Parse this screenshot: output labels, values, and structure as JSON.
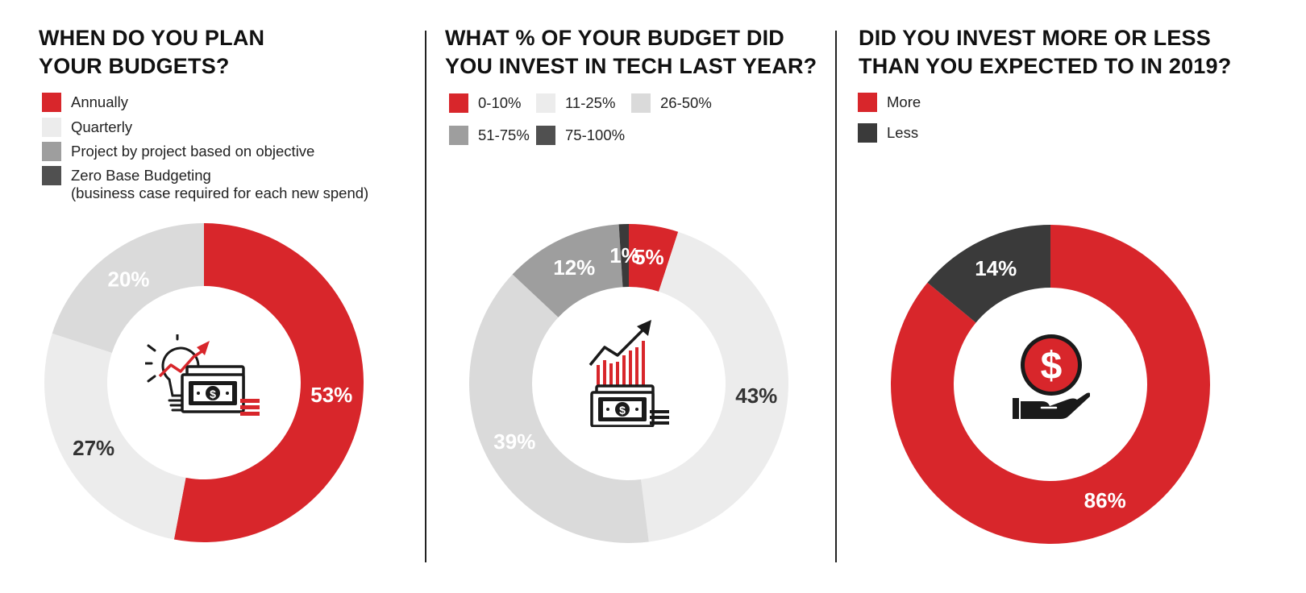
{
  "colors": {
    "red": "#d8262b",
    "light": "#ececec",
    "light2": "#dadada",
    "mid": "#9e9e9e",
    "dark": "#505050",
    "darker": "#3a3a3a"
  },
  "chart_data": [
    {
      "type": "pie",
      "title_lines": [
        "WHEN DO YOU PLAN",
        "YOUR BUDGETS?"
      ],
      "categories": [
        "Annually",
        "Quarterly",
        "Project by project based on objective",
        "Zero Base Budgeting"
      ],
      "legend_lines": [
        [
          "Annually"
        ],
        [
          "Quarterly"
        ],
        [
          "Project by project based on objective"
        ],
        [
          "Zero Base Budgeting",
          "(business case required for each new spend)"
        ]
      ],
      "values": [
        53,
        27,
        20,
        0
      ],
      "value_labels": [
        "53%",
        "27%",
        "20%",
        ""
      ],
      "colors": [
        "#d8262b",
        "#ececec",
        "#9e9e9e",
        "#505050"
      ],
      "slice_colors": [
        "#d8262b",
        "#ececec",
        "#dadada",
        "#505050"
      ],
      "label_colors": [
        "#ffffff",
        "#333333",
        "#ffffff",
        "#ffffff"
      ],
      "icon": "lightbulb-money-icon"
    },
    {
      "type": "pie",
      "title_lines": [
        "WHAT % OF YOUR BUDGET DID",
        "YOU INVEST IN TECH LAST YEAR?"
      ],
      "categories": [
        "0-10%",
        "11-25%",
        "26-50%",
        "51-75%",
        "75-100%"
      ],
      "legend_lines": [
        [
          "0-10%"
        ],
        [
          "11-25%"
        ],
        [
          "26-50%"
        ],
        [
          "51-75%"
        ],
        [
          "75-100%"
        ]
      ],
      "values": [
        5,
        43,
        39,
        12,
        1
      ],
      "value_labels": [
        "5%",
        "43%",
        "39%",
        "12%",
        "1%"
      ],
      "colors": [
        "#d8262b",
        "#ececec",
        "#dadada",
        "#9e9e9e",
        "#505050"
      ],
      "slice_colors": [
        "#d8262b",
        "#ececec",
        "#dadada",
        "#9e9e9e",
        "#3a3a3a"
      ],
      "label_colors": [
        "#ffffff",
        "#333333",
        "#ffffff",
        "#ffffff",
        "#ffffff"
      ],
      "icon": "growth-chart-money-icon"
    },
    {
      "type": "pie",
      "title_lines": [
        "DID YOU INVEST MORE OR LESS",
        "THAN YOU EXPECTED TO IN 2019?"
      ],
      "categories": [
        "More",
        "Less"
      ],
      "legend_lines": [
        [
          "More"
        ],
        [
          "Less"
        ]
      ],
      "values": [
        86,
        14
      ],
      "value_labels": [
        "86%",
        "14%"
      ],
      "colors": [
        "#d8262b",
        "#3a3a3a"
      ],
      "slice_colors": [
        "#d8262b",
        "#3a3a3a"
      ],
      "label_colors": [
        "#ffffff",
        "#ffffff"
      ],
      "icon": "hand-dollar-coin-icon"
    }
  ]
}
